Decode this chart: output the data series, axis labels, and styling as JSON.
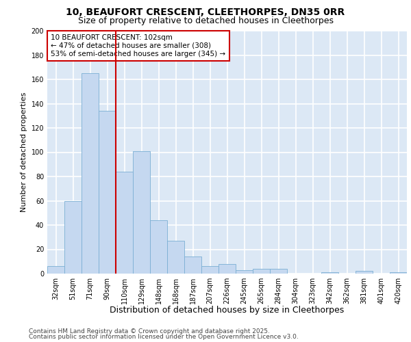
{
  "title1": "10, BEAUFORT CRESCENT, CLEETHORPES, DN35 0RR",
  "title2": "Size of property relative to detached houses in Cleethorpes",
  "xlabel": "Distribution of detached houses by size in Cleethorpes",
  "ylabel": "Number of detached properties",
  "categories": [
    "32sqm",
    "51sqm",
    "71sqm",
    "90sqm",
    "110sqm",
    "129sqm",
    "148sqm",
    "168sqm",
    "187sqm",
    "207sqm",
    "226sqm",
    "245sqm",
    "265sqm",
    "284sqm",
    "304sqm",
    "323sqm",
    "342sqm",
    "362sqm",
    "381sqm",
    "401sqm",
    "420sqm"
  ],
  "values": [
    6,
    60,
    165,
    134,
    84,
    101,
    44,
    27,
    14,
    6,
    8,
    3,
    4,
    4,
    0,
    0,
    1,
    0,
    2,
    0,
    1
  ],
  "bar_color": "#c5d8f0",
  "bar_edge_color": "#7bafd4",
  "vline_x": 3.5,
  "vline_color": "#cc0000",
  "annotation_lines": [
    "10 BEAUFORT CRESCENT: 102sqm",
    "← 47% of detached houses are smaller (308)",
    "53% of semi-detached houses are larger (345) →"
  ],
  "annotation_box_color": "#cc0000",
  "plot_bg_color": "#dce8f5",
  "fig_bg_color": "#ffffff",
  "grid_color": "#ffffff",
  "ylim": [
    0,
    200
  ],
  "yticks": [
    0,
    20,
    40,
    60,
    80,
    100,
    120,
    140,
    160,
    180,
    200
  ],
  "footnote1": "Contains HM Land Registry data © Crown copyright and database right 2025.",
  "footnote2": "Contains public sector information licensed under the Open Government Licence v3.0.",
  "title1_fontsize": 10,
  "title2_fontsize": 9,
  "xlabel_fontsize": 9,
  "ylabel_fontsize": 8,
  "tick_fontsize": 7,
  "annot_fontsize": 7.5,
  "footnote_fontsize": 6.5
}
